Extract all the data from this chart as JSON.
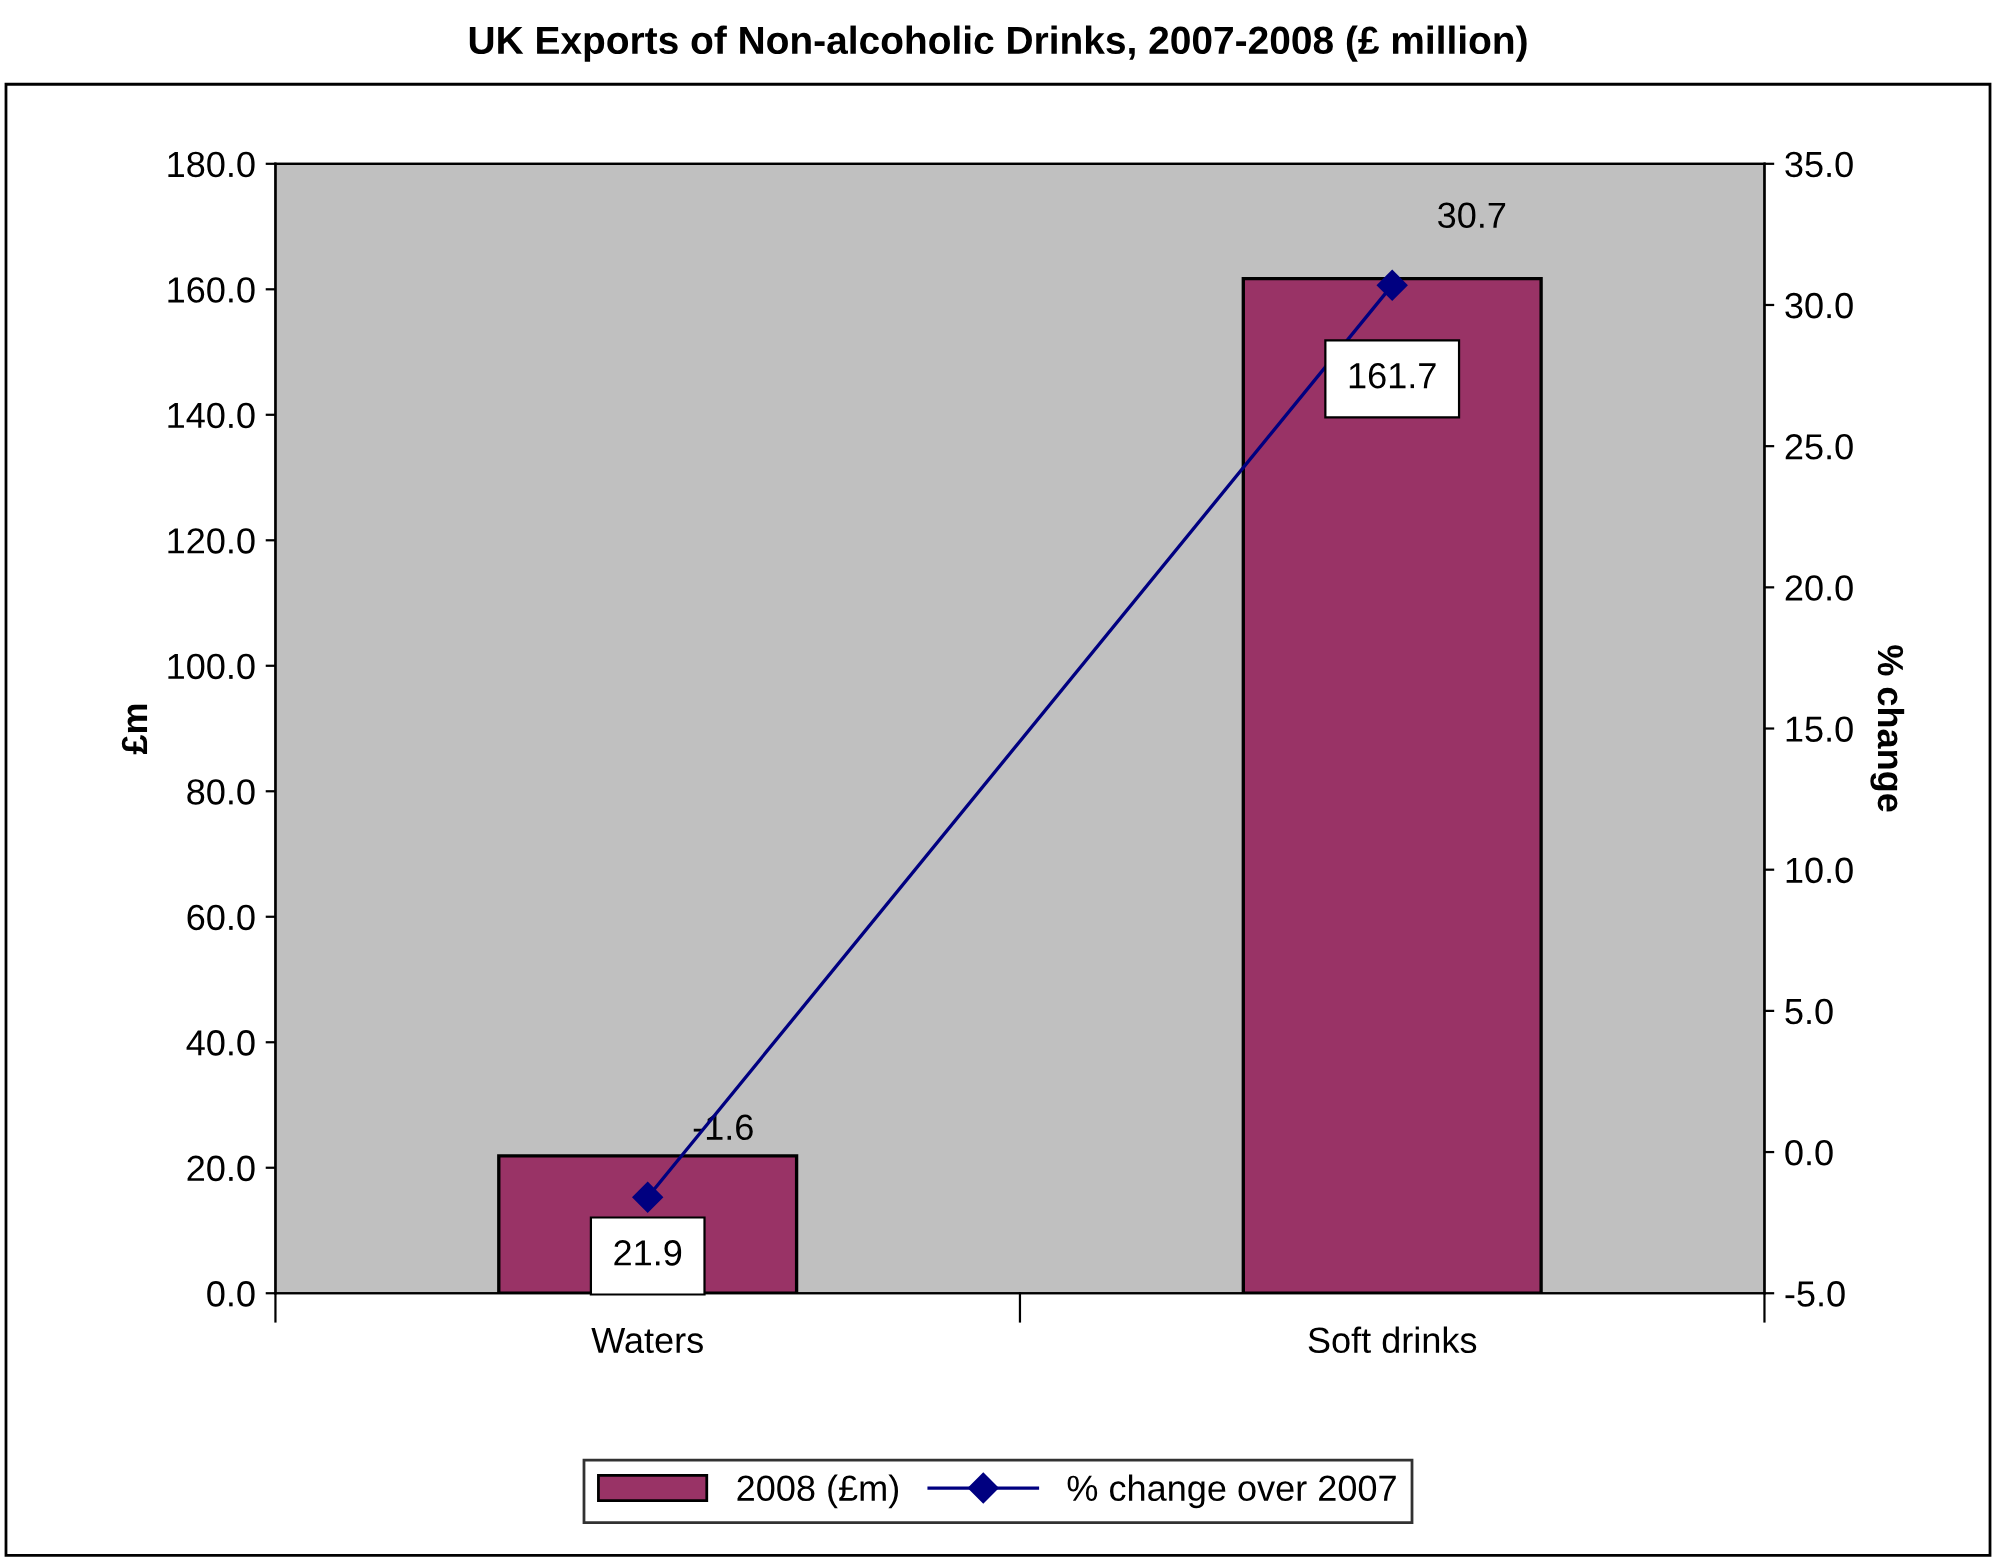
{
  "chart_data": {
    "type": "bar",
    "title": "UK Exports of Non-alcoholic Drinks, 2007-2008 (£ million)",
    "ylabel": "£m",
    "y2label": "% change",
    "categories": [
      "Waters",
      "Soft drinks"
    ],
    "series": [
      {
        "name": "2008 (£m)",
        "type": "bar",
        "color": "#993366",
        "values": [
          21.9,
          161.7
        ]
      },
      {
        "name": "% change over 2007",
        "type": "line",
        "axis": "y2",
        "color": "#000080",
        "marker": "diamond",
        "values": [
          -1.6,
          30.7
        ]
      }
    ],
    "ylim": [
      0,
      180
    ],
    "yticks": [
      {
        "value": 0,
        "label": "0.0"
      },
      {
        "value": 20,
        "label": "20.0"
      },
      {
        "value": 40,
        "label": "40.0"
      },
      {
        "value": 60,
        "label": "60.0"
      },
      {
        "value": 80,
        "label": "80.0"
      },
      {
        "value": 100,
        "label": "100.0"
      },
      {
        "value": 120,
        "label": "120.0"
      },
      {
        "value": 140,
        "label": "140.0"
      },
      {
        "value": 160,
        "label": "160.0"
      },
      {
        "value": 180,
        "label": "180.0"
      }
    ],
    "y2lim": [
      -5,
      35
    ],
    "y2ticks": [
      {
        "value": -5,
        "label": "-5.0"
      },
      {
        "value": 0,
        "label": "0.0"
      },
      {
        "value": 5,
        "label": "5.0"
      },
      {
        "value": 10,
        "label": "10.0"
      },
      {
        "value": 15,
        "label": "15.0"
      },
      {
        "value": 20,
        "label": "20.0"
      },
      {
        "value": 25,
        "label": "25.0"
      },
      {
        "value": 30,
        "label": "30.0"
      },
      {
        "value": 35,
        "label": "35.0"
      }
    ],
    "data_labels": true,
    "grid": false,
    "legend": "bottom"
  }
}
